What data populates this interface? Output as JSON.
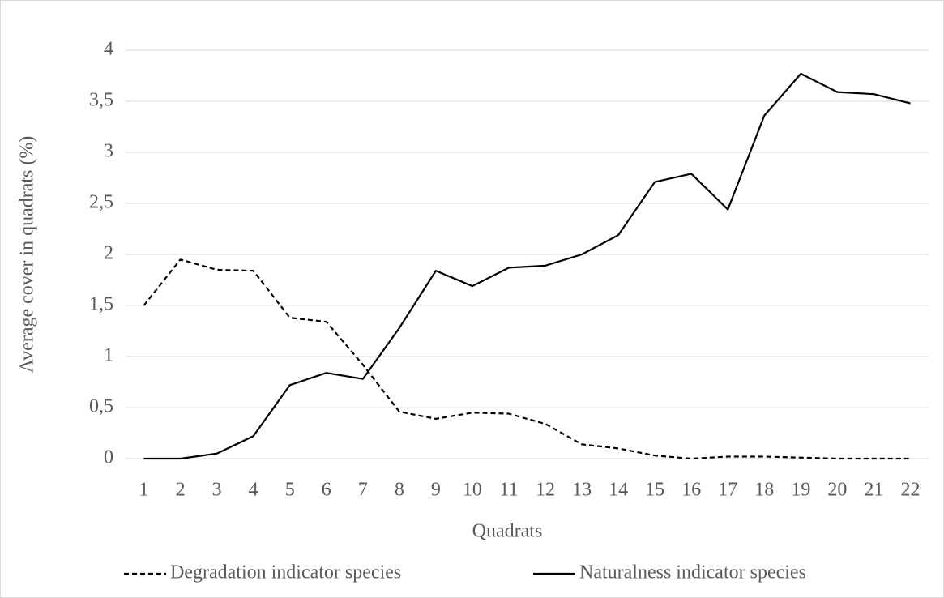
{
  "chart_data": {
    "type": "line",
    "x_label": "Quadrats",
    "y_label": "Average cover in quadrats (%)",
    "categories": [
      "1",
      "2",
      "3",
      "4",
      "5",
      "6",
      "7",
      "8",
      "9",
      "10",
      "11",
      "12",
      "13",
      "14",
      "15",
      "16",
      "17",
      "18",
      "19",
      "20",
      "21",
      "22"
    ],
    "series": [
      {
        "name": "Degradation indicator species",
        "color": "#000000",
        "dashed": true,
        "values": [
          1.5,
          1.95,
          1.85,
          1.84,
          1.38,
          1.34,
          0.92,
          0.46,
          0.39,
          0.45,
          0.44,
          0.34,
          0.14,
          0.1,
          0.03,
          0.0,
          0.02,
          0.02,
          0.01,
          0,
          0,
          0
        ]
      },
      {
        "name": "Naturalness indicator species",
        "color": "#000000",
        "dashed": false,
        "values": [
          0,
          0,
          0.05,
          0.22,
          0.72,
          0.84,
          0.78,
          1.28,
          1.84,
          1.69,
          1.87,
          1.89,
          2.0,
          2.19,
          2.71,
          2.79,
          2.44,
          3.36,
          3.77,
          3.59,
          3.57,
          3.48
        ]
      }
    ],
    "ylim": [
      0,
      4
    ],
    "yticks": [
      0,
      {
        "value": 0.5,
        "label": "0,5"
      },
      1,
      {
        "value": 1.5,
        "label": "1,5"
      },
      2,
      {
        "value": 2.5,
        "label": "2,5"
      },
      3,
      {
        "value": 3.5,
        "label": "3,5"
      },
      4
    ],
    "grid": true,
    "legend": "bottom"
  }
}
